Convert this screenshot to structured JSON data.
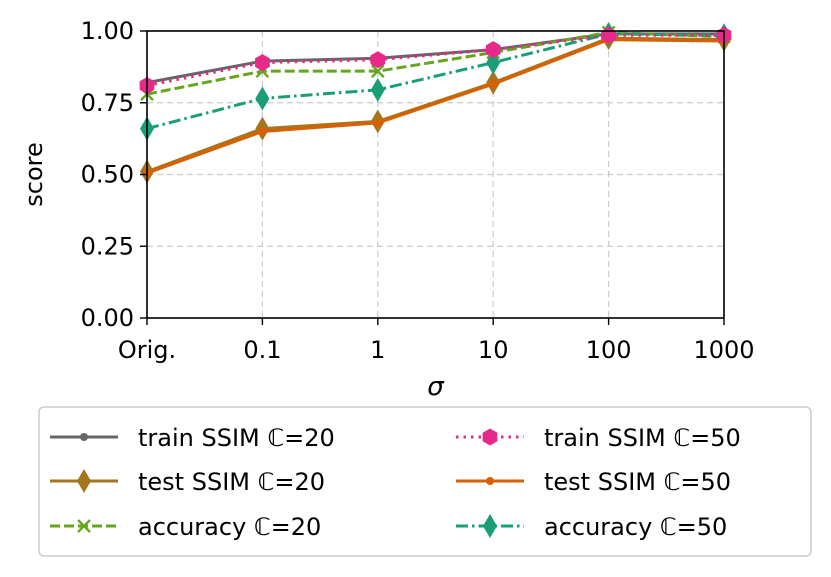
{
  "chart_data": {
    "type": "line",
    "xlabel": "σ",
    "ylabel": "score",
    "categories": [
      "Orig.",
      "0.1",
      "1",
      "10",
      "100",
      "1000"
    ],
    "ylim": [
      0,
      1
    ],
    "yticks": [
      "0.00",
      "0.25",
      "0.50",
      "0.75",
      "1.00"
    ],
    "grid": true,
    "legend_position": "below",
    "series": [
      {
        "name": "train SSIM ℂ=20",
        "color": "#666666",
        "style": "solid",
        "marker": "dot",
        "values": [
          0.82,
          0.895,
          0.905,
          0.935,
          0.99,
          0.99
        ]
      },
      {
        "name": "test SSIM ℂ=20",
        "color": "#a6761d",
        "style": "solid",
        "marker": "thin_diamond",
        "values": [
          0.51,
          0.66,
          0.685,
          0.82,
          0.975,
          0.97
        ]
      },
      {
        "name": "accuracy ℂ=20",
        "color": "#66a61e",
        "style": "dashed",
        "marker": "x",
        "values": [
          0.78,
          0.86,
          0.86,
          0.925,
          0.995,
          0.98
        ]
      },
      {
        "name": "train SSIM ℂ=50",
        "color": "#e7298a",
        "style": "dotted",
        "marker": "hexagon",
        "values": [
          0.81,
          0.89,
          0.9,
          0.935,
          0.985,
          0.985
        ]
      },
      {
        "name": "test SSIM ℂ=50",
        "color": "#d95f02",
        "style": "solid",
        "marker": "dot",
        "values": [
          0.505,
          0.65,
          0.68,
          0.815,
          0.97,
          0.965
        ]
      },
      {
        "name": "accuracy ℂ=50",
        "color": "#1b9e77",
        "style": "dashdot",
        "marker": "thin_diamond",
        "values": [
          0.66,
          0.765,
          0.795,
          0.89,
          0.99,
          0.985
        ]
      }
    ]
  }
}
